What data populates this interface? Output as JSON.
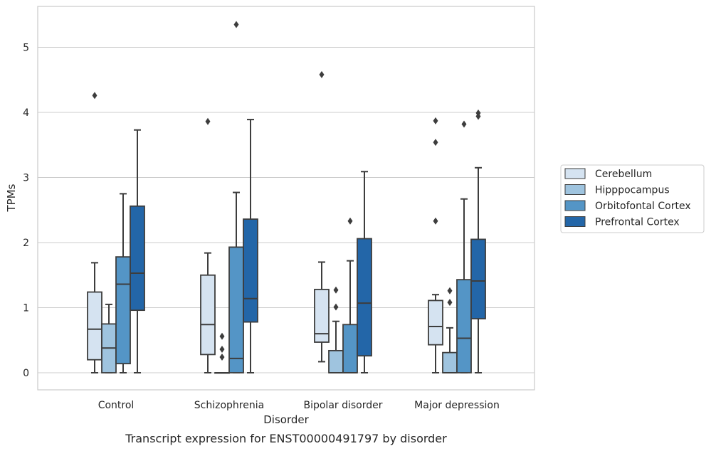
{
  "chart_data": {
    "type": "box",
    "caption": "Transcript expression for ENST00000491797 by disorder",
    "xlabel": "Disorder",
    "ylabel": "TPMs",
    "ylim": [
      -0.25,
      5.6
    ],
    "yticks": [
      0,
      1,
      2,
      3,
      4,
      5
    ],
    "grid": "horizontal",
    "legend_position": "right",
    "categories": [
      "Control",
      "Schizophrenia",
      "Bipolar disorder",
      "Major depression"
    ],
    "series": [
      {
        "name": "Cerebellum",
        "color": "#d5e3f1",
        "boxes": [
          {
            "whislo": 0.0,
            "q1": 0.2,
            "med": 0.67,
            "q3": 1.24,
            "whishi": 1.69,
            "fliers": [
              4.26
            ]
          },
          {
            "whislo": 0.0,
            "q1": 0.28,
            "med": 0.74,
            "q3": 1.5,
            "whishi": 1.84,
            "fliers": [
              3.86
            ]
          },
          {
            "whislo": 0.17,
            "q1": 0.47,
            "med": 0.6,
            "q3": 1.28,
            "whishi": 1.7,
            "fliers": [
              4.58
            ]
          },
          {
            "whislo": 0.0,
            "q1": 0.43,
            "med": 0.71,
            "q3": 1.11,
            "whishi": 1.2,
            "fliers": [
              2.33,
              3.54,
              3.87
            ]
          }
        ]
      },
      {
        "name": "Hipppocampus",
        "color": "#9fc4df",
        "boxes": [
          {
            "whislo": 0.0,
            "q1": 0.0,
            "med": 0.38,
            "q3": 0.75,
            "whishi": 1.05,
            "fliers": []
          },
          {
            "whislo": 0.0,
            "q1": 0.0,
            "med": 0.0,
            "q3": 0.0,
            "whishi": 0.0,
            "fliers": [
              0.24,
              0.36,
              0.56
            ]
          },
          {
            "whislo": 0.0,
            "q1": 0.0,
            "med": 0.0,
            "q3": 0.34,
            "whishi": 0.79,
            "fliers": [
              1.01,
              1.27
            ]
          },
          {
            "whislo": 0.0,
            "q1": 0.0,
            "med": 0.0,
            "q3": 0.31,
            "whishi": 0.69,
            "fliers": [
              1.08,
              1.26
            ]
          }
        ]
      },
      {
        "name": "Orbitofontal Cortex",
        "color": "#5495c6",
        "boxes": [
          {
            "whislo": 0.0,
            "q1": 0.14,
            "med": 1.36,
            "q3": 1.78,
            "whishi": 2.75,
            "fliers": []
          },
          {
            "whislo": 0.0,
            "q1": 0.0,
            "med": 0.22,
            "q3": 1.93,
            "whishi": 2.77,
            "fliers": [
              5.35
            ]
          },
          {
            "whislo": 0.0,
            "q1": 0.0,
            "med": 0.0,
            "q3": 0.74,
            "whishi": 1.72,
            "fliers": [
              2.33
            ]
          },
          {
            "whislo": 0.0,
            "q1": 0.0,
            "med": 0.53,
            "q3": 1.43,
            "whishi": 2.67,
            "fliers": [
              3.82
            ]
          }
        ]
      },
      {
        "name": "Prefrontal Cortex",
        "color": "#2366a8",
        "boxes": [
          {
            "whislo": 0.0,
            "q1": 0.96,
            "med": 1.53,
            "q3": 2.56,
            "whishi": 3.73,
            "fliers": []
          },
          {
            "whislo": 0.0,
            "q1": 0.78,
            "med": 1.14,
            "q3": 2.36,
            "whishi": 3.89,
            "fliers": []
          },
          {
            "whislo": 0.0,
            "q1": 0.26,
            "med": 1.07,
            "q3": 2.06,
            "whishi": 3.09,
            "fliers": []
          },
          {
            "whislo": 0.0,
            "q1": 0.83,
            "med": 1.41,
            "q3": 2.05,
            "whishi": 3.15,
            "fliers": [
              3.94,
              3.99
            ]
          }
        ]
      }
    ]
  }
}
